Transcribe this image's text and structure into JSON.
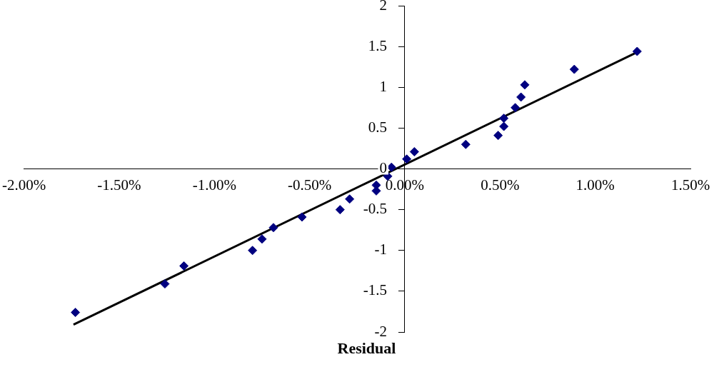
{
  "chart_data": {
    "type": "scatter",
    "xlabel": "Residual",
    "xlim": [
      -2,
      1.5
    ],
    "xticks": [
      {
        "value": -2,
        "label": "-2.00%"
      },
      {
        "value": -1.5,
        "label": "-1.50%"
      },
      {
        "value": -1,
        "label": "-1.00%"
      },
      {
        "value": -0.5,
        "label": "-0.50%"
      },
      {
        "value": 0,
        "label": "0.00%"
      },
      {
        "value": 0.5,
        "label": "0.50%"
      },
      {
        "value": 1,
        "label": "1.00%"
      },
      {
        "value": 1.5,
        "label": "1.50%"
      }
    ],
    "ylim": [
      -2,
      2
    ],
    "yticks": [
      -2,
      -1.5,
      -1,
      -0.5,
      0,
      0.5,
      1,
      1.5,
      2
    ],
    "grid": false,
    "legend": false,
    "series": [
      {
        "type": "scatter",
        "color": "#000080",
        "marker": "diamond",
        "x": [
          -1.73,
          -1.26,
          -1.16,
          -0.8,
          -0.75,
          -0.69,
          -0.54,
          -0.34,
          -0.29,
          -0.15,
          -0.15,
          -0.09,
          -0.07,
          0.01,
          0.05,
          0.32,
          0.49,
          0.52,
          0.52,
          0.58,
          0.61,
          0.63,
          0.89,
          1.22
        ],
        "values": [
          -1.76,
          -1.41,
          -1.19,
          -1,
          -0.86,
          -0.72,
          -0.59,
          -0.5,
          -0.37,
          -0.27,
          -0.2,
          -0.09,
          0.02,
          0.12,
          0.21,
          0.3,
          0.41,
          0.52,
          0.62,
          0.75,
          0.88,
          1.03,
          1.22,
          1.44
        ]
      },
      {
        "type": "line",
        "color": "#000000",
        "marker": "none",
        "line_style": "solid",
        "x": [
          -1.74,
          1.22
        ],
        "values": [
          -1.91,
          1.43
        ]
      }
    ]
  }
}
